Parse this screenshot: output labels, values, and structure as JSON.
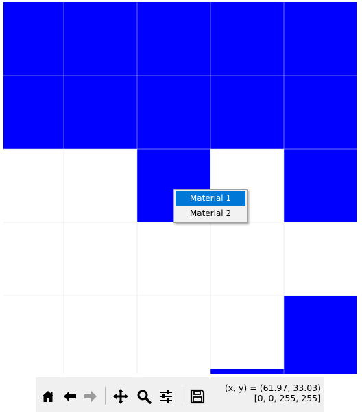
{
  "colors": {
    "material_fill": "#0000ff",
    "background": "#ffffff",
    "gridline": "#dcdcdc",
    "menu_highlight": "#0078d7"
  },
  "grid": {
    "columns": 5,
    "rows": 5,
    "filled_cells": [
      [
        1,
        1,
        1,
        1,
        1
      ],
      [
        1,
        1,
        1,
        1,
        1
      ],
      [
        0,
        0,
        1,
        0,
        1
      ],
      [
        0,
        0,
        0,
        0,
        0
      ],
      [
        0,
        0,
        0,
        0,
        1
      ]
    ]
  },
  "context_menu": {
    "items": [
      {
        "label": "Material 1",
        "active": true
      },
      {
        "label": "Material 2",
        "active": false
      }
    ]
  },
  "toolbar": {
    "tools": [
      {
        "name": "home-icon"
      },
      {
        "name": "back-arrow-icon"
      },
      {
        "name": "forward-arrow-icon"
      },
      {
        "name": "pan-icon"
      },
      {
        "name": "zoom-icon"
      },
      {
        "name": "configure-subplots-icon"
      },
      {
        "name": "save-icon"
      }
    ],
    "coord_line": "(x, y) = (61.97, 33.03)",
    "value_line": "[0, 0, 255, 255]"
  }
}
